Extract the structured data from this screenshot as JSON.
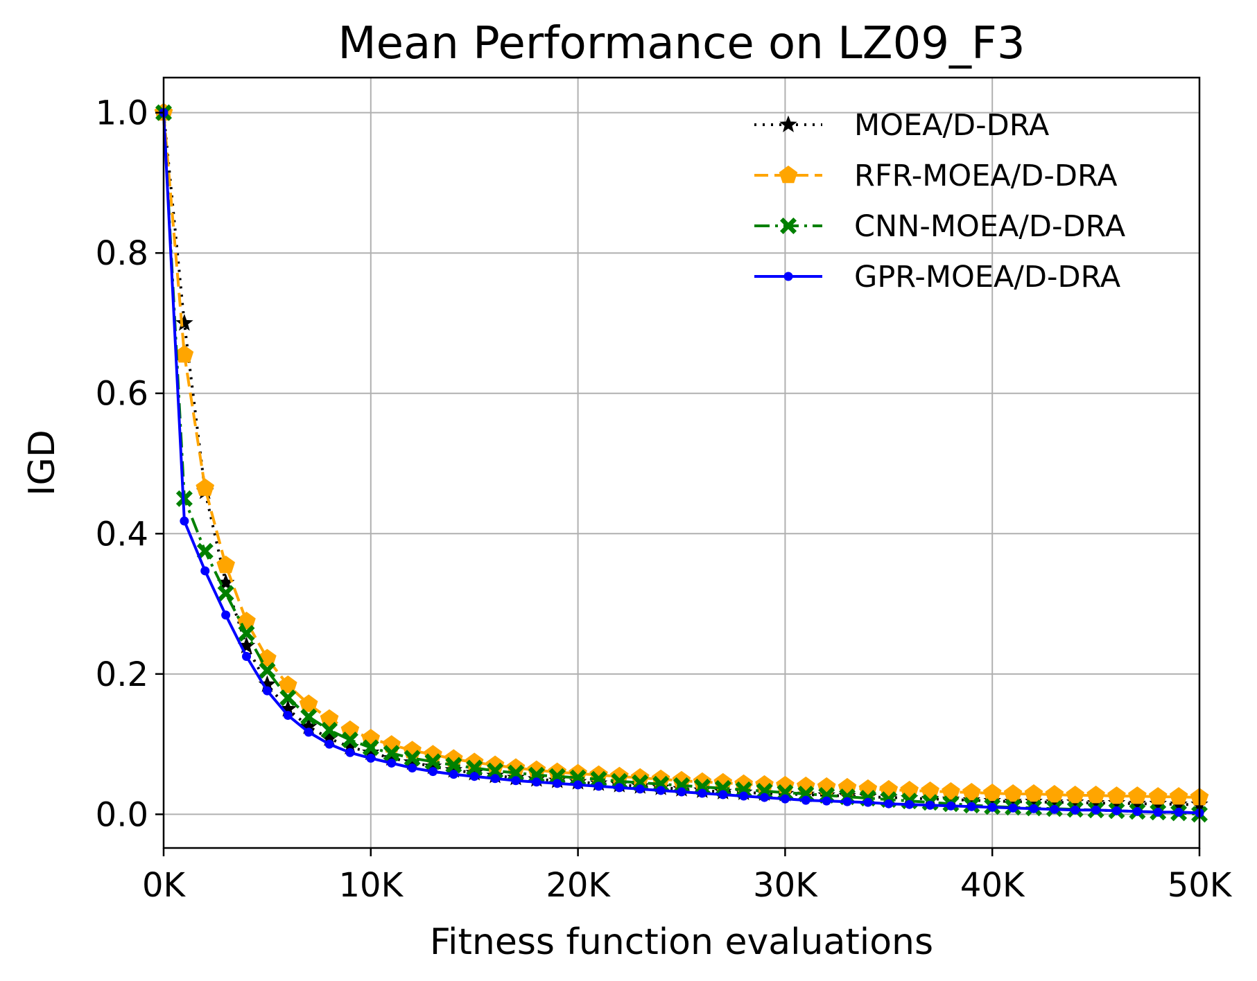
{
  "chart_data": {
    "type": "line",
    "title": "Mean Performance on LZ09_F3",
    "xlabel": "Fitness function evaluations",
    "ylabel": "IGD",
    "xlim": [
      0,
      50000
    ],
    "ylim": [
      -0.048,
      1.05
    ],
    "xticks": [
      0,
      10000,
      20000,
      30000,
      40000,
      50000
    ],
    "xtick_labels": [
      "0K",
      "10K",
      "20K",
      "30K",
      "40K",
      "50K"
    ],
    "yticks": [
      0.0,
      0.2,
      0.4,
      0.6,
      0.8,
      1.0
    ],
    "ytick_labels": [
      "0.0",
      "0.2",
      "0.4",
      "0.6",
      "0.8",
      "1.0"
    ],
    "grid": true,
    "legend_position": "top-right",
    "x": [
      0,
      1000,
      2000,
      3000,
      4000,
      5000,
      6000,
      7000,
      8000,
      9000,
      10000,
      11000,
      12000,
      13000,
      14000,
      15000,
      16000,
      17000,
      18000,
      19000,
      20000,
      21000,
      22000,
      23000,
      24000,
      25000,
      26000,
      27000,
      28000,
      29000,
      30000,
      31000,
      32000,
      33000,
      34000,
      35000,
      36000,
      37000,
      38000,
      39000,
      40000,
      41000,
      42000,
      43000,
      44000,
      45000,
      46000,
      47000,
      48000,
      49000,
      50000
    ],
    "series": [
      {
        "name": "MOEA/D-DRA",
        "color": "#000000",
        "linestyle": "dotted",
        "marker": "star",
        "values": [
          1.0,
          0.7,
          0.46,
          0.33,
          0.24,
          0.185,
          0.15,
          0.125,
          0.108,
          0.096,
          0.088,
          0.08,
          0.074,
          0.068,
          0.063,
          0.059,
          0.055,
          0.052,
          0.05,
          0.048,
          0.046,
          0.044,
          0.042,
          0.04,
          0.038,
          0.036,
          0.034,
          0.032,
          0.031,
          0.03,
          0.029,
          0.028,
          0.027,
          0.026,
          0.025,
          0.024,
          0.023,
          0.022,
          0.021,
          0.02,
          0.019,
          0.018,
          0.018,
          0.017,
          0.017,
          0.016,
          0.016,
          0.015,
          0.015,
          0.014,
          0.014
        ]
      },
      {
        "name": "RFR-MOEA/D-DRA",
        "color": "#ffa500",
        "linestyle": "dashed",
        "marker": "pentagon",
        "values": [
          1.0,
          0.655,
          0.465,
          0.355,
          0.275,
          0.222,
          0.184,
          0.157,
          0.136,
          0.12,
          0.108,
          0.099,
          0.091,
          0.085,
          0.079,
          0.074,
          0.07,
          0.066,
          0.063,
          0.06,
          0.058,
          0.056,
          0.054,
          0.052,
          0.05,
          0.048,
          0.046,
          0.045,
          0.043,
          0.042,
          0.041,
          0.04,
          0.039,
          0.038,
          0.036,
          0.035,
          0.034,
          0.033,
          0.032,
          0.031,
          0.03,
          0.029,
          0.029,
          0.028,
          0.027,
          0.027,
          0.026,
          0.026,
          0.025,
          0.025,
          0.024
        ]
      },
      {
        "name": "CNN-MOEA/D-DRA",
        "color": "#008000",
        "linestyle": "dashdot",
        "marker": "x-filled",
        "values": [
          1.0,
          0.45,
          0.375,
          0.315,
          0.258,
          0.205,
          0.166,
          0.139,
          0.12,
          0.106,
          0.095,
          0.087,
          0.08,
          0.075,
          0.07,
          0.066,
          0.062,
          0.059,
          0.056,
          0.054,
          0.052,
          0.05,
          0.047,
          0.045,
          0.043,
          0.041,
          0.039,
          0.037,
          0.035,
          0.033,
          0.031,
          0.029,
          0.027,
          0.025,
          0.023,
          0.021,
          0.019,
          0.017,
          0.015,
          0.013,
          0.011,
          0.01,
          0.009,
          0.008,
          0.007,
          0.006,
          0.005,
          0.004,
          0.003,
          0.002,
          0.0
        ]
      },
      {
        "name": "GPR-MOEA/D-DRA",
        "color": "#0000ff",
        "linestyle": "solid",
        "marker": "dot",
        "values": [
          1.0,
          0.418,
          0.347,
          0.284,
          0.225,
          0.176,
          0.141,
          0.117,
          0.1,
          0.088,
          0.08,
          0.073,
          0.066,
          0.061,
          0.057,
          0.054,
          0.051,
          0.048,
          0.046,
          0.044,
          0.042,
          0.04,
          0.038,
          0.036,
          0.034,
          0.032,
          0.03,
          0.028,
          0.026,
          0.024,
          0.022,
          0.02,
          0.019,
          0.018,
          0.017,
          0.015,
          0.014,
          0.013,
          0.012,
          0.011,
          0.01,
          0.009,
          0.008,
          0.007,
          0.006,
          0.006,
          0.005,
          0.004,
          0.003,
          0.003,
          0.002
        ]
      }
    ]
  }
}
